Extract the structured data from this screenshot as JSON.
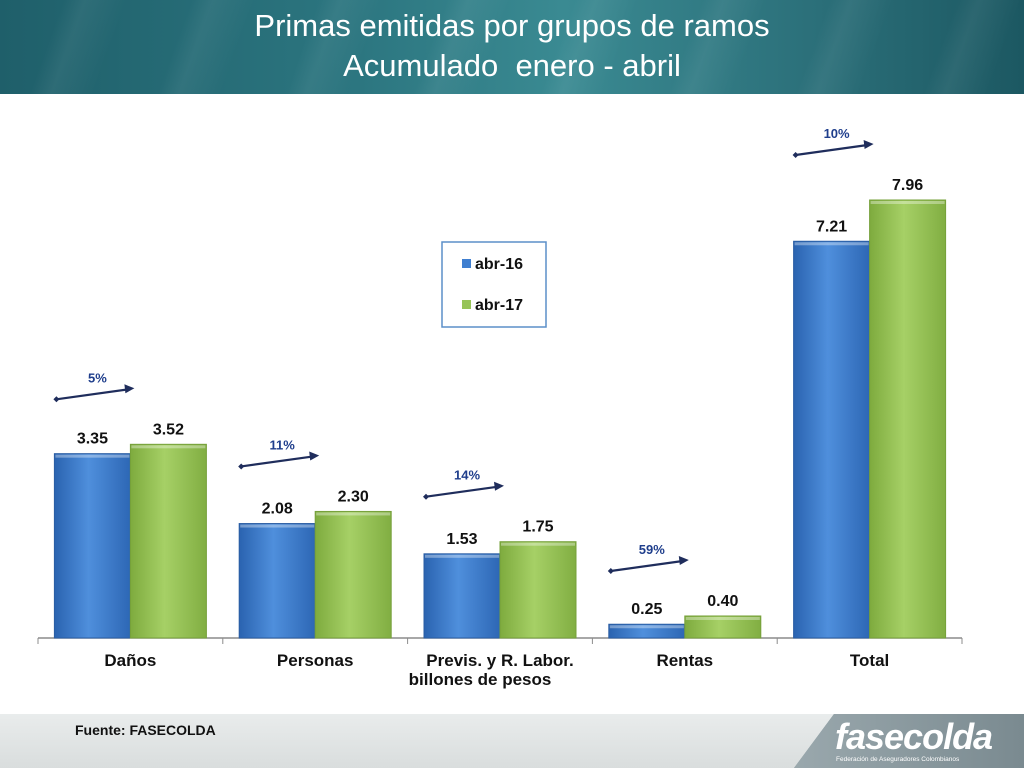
{
  "header": {
    "title_line1": "Primas emitidas por grupos de ramos",
    "title_line2": "Acumulado  enero - abril"
  },
  "footer": {
    "source": "Fuente: FASECOLDA",
    "logo_text": "fasecolda",
    "logo_subtitle": "Federación de Aseguradores Colombianos"
  },
  "colors": {
    "series_abr16": "#3f7fd0",
    "series_abr17": "#97c458",
    "arrow": "#1f2d5c",
    "growth_label": "#1f3e8c"
  },
  "chart_data": {
    "type": "bar",
    "categories": [
      "Daños",
      "Personas",
      "Previs. y R. Labor.",
      "Rentas",
      "Total"
    ],
    "series": [
      {
        "name": "abr-16",
        "values": [
          3.35,
          2.08,
          1.53,
          0.25,
          7.21
        ]
      },
      {
        "name": "abr-17",
        "values": [
          3.52,
          2.3,
          1.75,
          0.4,
          7.96
        ]
      }
    ],
    "value_labels": {
      "abr-16": [
        "3.35",
        "2.08",
        "1.53",
        "0.25",
        "7.21"
      ],
      "abr-17": [
        "3.52",
        "2.30",
        "1.75",
        "0.40",
        "7.96"
      ]
    },
    "growth_labels": [
      "5%",
      "11%",
      "14%",
      "59%",
      "10%"
    ],
    "xlabel": "billones de pesos",
    "ylim": [
      0,
      8.6
    ],
    "legend_position": "center",
    "grid": false
  }
}
